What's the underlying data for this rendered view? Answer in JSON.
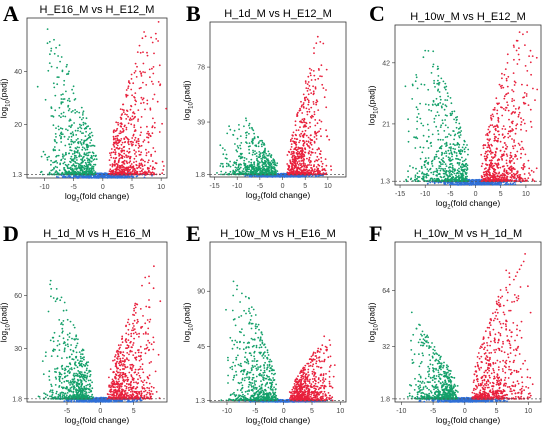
{
  "colors": {
    "up": "#e8203c",
    "down": "#14a06a",
    "ns": "#2f6fd6",
    "frame": "#333333",
    "threshold": "#555555"
  },
  "chart_data": [
    {
      "type": "scatter",
      "letter": "A",
      "title": "H_E16_M vs H_E12_M",
      "xlabel": "log2(fold change)",
      "ylabel": "log10(padj)",
      "xlim": [
        -13,
        11
      ],
      "ylim": [
        0,
        60
      ],
      "xticks": [
        -10,
        -5,
        0,
        5,
        10
      ],
      "yticks": [
        1.3,
        20,
        40
      ],
      "threshold_y": 1.3,
      "up_peak": 58,
      "down_peak": 56,
      "up_x": 5,
      "down_x": -5
    },
    {
      "type": "scatter",
      "letter": "B",
      "title": "H_1d_M vs H_E12_M",
      "xlabel": "log2(fold change)",
      "ylabel": "log10(padj)",
      "xlim": [
        -16,
        14
      ],
      "ylim": [
        0,
        110
      ],
      "xticks": [
        -15,
        -10,
        -5,
        0,
        5,
        10
      ],
      "yticks": [
        1.8,
        39,
        78
      ],
      "threshold_y": 1.8,
      "up_peak": 100,
      "down_peak": 40,
      "up_x": 5,
      "down_x": -7
    },
    {
      "type": "scatter",
      "letter": "C",
      "title": "H_10w_M vs H_E12_M",
      "xlabel": "log2(fold change)",
      "ylabel": "log10(padj)",
      "xlim": [
        -16,
        13
      ],
      "ylim": [
        0,
        55
      ],
      "xticks": [
        -15,
        -10,
        -5,
        0,
        5,
        10
      ],
      "yticks": [
        1.3,
        21,
        42
      ],
      "threshold_y": 1.3,
      "up_peak": 52,
      "down_peak": 45,
      "up_x": 6,
      "down_x": -7
    },
    {
      "type": "scatter",
      "letter": "D",
      "title": "H_1d_M vs H_E16_M",
      "xlabel": "log2(fold change)",
      "ylabel": "log10(padj)",
      "xlim": [
        -11,
        10
      ],
      "ylim": [
        0,
        90
      ],
      "xticks": [
        -5,
        0,
        5
      ],
      "yticks": [
        1.8,
        30,
        60
      ],
      "threshold_y": 1.8,
      "up_peak": 80,
      "down_peak": 85,
      "up_x": 4,
      "down_x": -4
    },
    {
      "type": "scatter",
      "letter": "E",
      "title": "H_10w_M vs H_E16_M",
      "xlabel": "log2(fold change)",
      "ylabel": "log10(padj)",
      "xlim": [
        -13,
        11
      ],
      "ylim": [
        0,
        130
      ],
      "xticks": [
        -10,
        -5,
        0,
        5,
        10
      ],
      "yticks": [
        1.3,
        45,
        90
      ],
      "threshold_y": 1.3,
      "up_peak": 55,
      "down_peak": 120,
      "up_x": 4,
      "down_x": -5
    },
    {
      "type": "scatter",
      "letter": "F",
      "title": "H_10w_M vs H_1d_M",
      "xlabel": "log2(fold change)",
      "ylabel": "log10(padj)",
      "xlim": [
        -11,
        12
      ],
      "ylim": [
        0,
        92
      ],
      "xticks": [
        -10,
        -5,
        0,
        5,
        10
      ],
      "yticks": [
        1.8,
        32,
        64
      ],
      "threshold_y": 1.8,
      "up_peak": 88,
      "down_peak": 50,
      "up_x": 5,
      "down_x": -4
    }
  ]
}
